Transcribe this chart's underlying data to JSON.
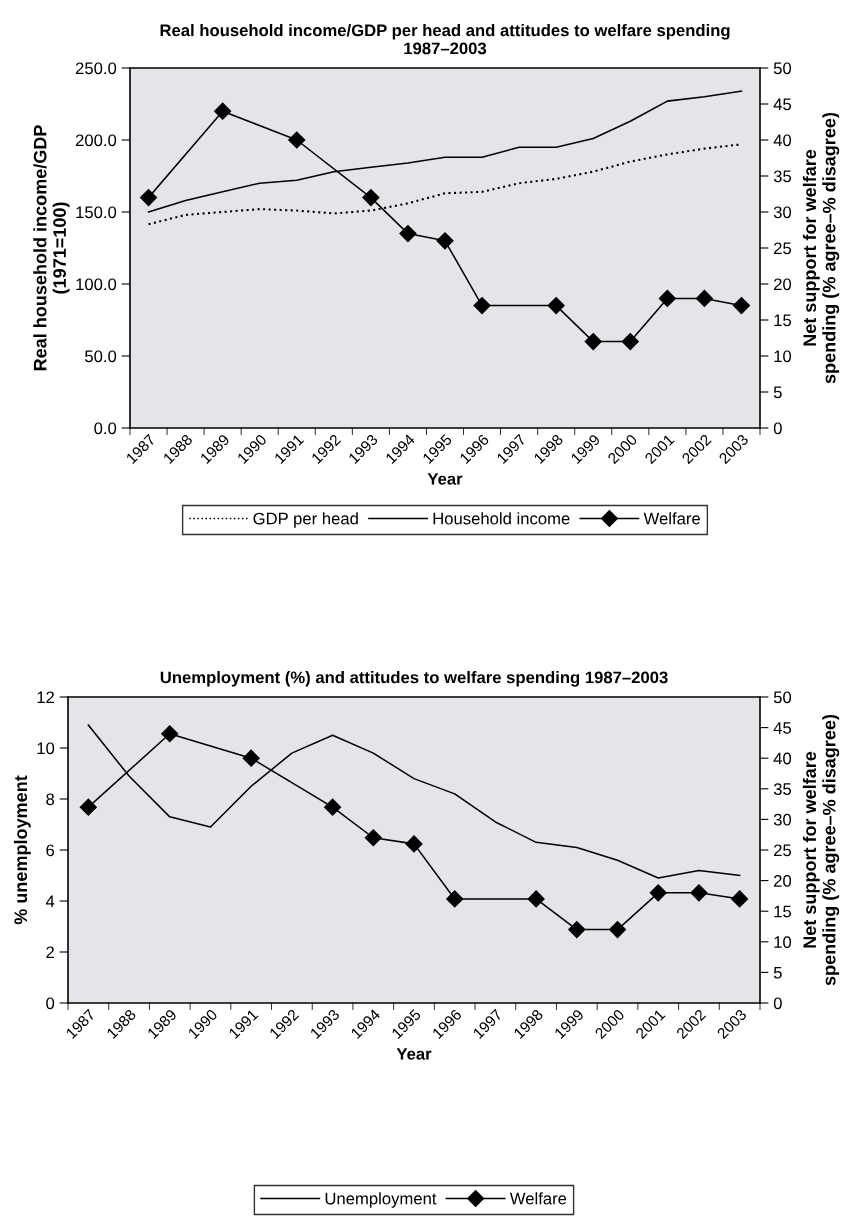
{
  "chart_data": [
    {
      "type": "line",
      "title": "Real household income/GDP per head and attitudes to welfare spending\n1987–2003",
      "xlabel": "Year",
      "ylabel": "Real household income/GDP\n(1971=100)",
      "y2label": "Net support for welfare\nspending (% agree–% disagree)",
      "categories": [
        "1987",
        "1988",
        "1989",
        "1990",
        "1991",
        "1992",
        "1993",
        "1994",
        "1995",
        "1996",
        "1997",
        "1998",
        "1999",
        "2000",
        "2001",
        "2002",
        "2003"
      ],
      "ylim": [
        0,
        250
      ],
      "yticks": [
        {
          "value": 0,
          "label": "0.0"
        },
        {
          "value": 50,
          "label": "50.0"
        },
        {
          "value": 100,
          "label": "100.0"
        },
        {
          "value": 150,
          "label": "150.0"
        },
        {
          "value": 200,
          "label": "200.0"
        },
        {
          "value": 250,
          "label": "250.0"
        }
      ],
      "y2lim": [
        0,
        50
      ],
      "y2ticks": [
        0,
        5,
        10,
        15,
        20,
        25,
        30,
        35,
        40,
        45,
        50
      ],
      "grid": false,
      "legend": "bottom",
      "series": [
        {
          "name": "GDP per head",
          "color": "#000000",
          "line_style": "dotted",
          "marker": "none",
          "values": [
            141.5,
            148,
            150,
            152,
            151,
            149,
            151,
            156,
            163,
            164,
            170,
            173,
            178,
            185,
            190,
            194,
            197
          ]
        },
        {
          "name": "Household income",
          "color": "#000000",
          "line_style": "solid",
          "marker": "none",
          "values": [
            150,
            158,
            164,
            170,
            172,
            178,
            181,
            184,
            188,
            188,
            195,
            195,
            201,
            213,
            227,
            230,
            234
          ]
        },
        {
          "name": "Welfare",
          "color": "#000000",
          "line_style": "solid",
          "marker": "diamond",
          "axis": "y2",
          "values": [
            32,
            null,
            44,
            null,
            40,
            null,
            32,
            27,
            26,
            17,
            null,
            17,
            12,
            12,
            18,
            18,
            17
          ]
        }
      ]
    },
    {
      "type": "line",
      "title": "Unemployment (%) and attitudes to welfare spending 1987–2003",
      "xlabel": "Year",
      "ylabel": "% unemployment",
      "y2label": "Net support for welfare\nspending (% agree–% disagree)",
      "categories": [
        "1987",
        "1988",
        "1989",
        "1990",
        "1991",
        "1992",
        "1993",
        "1994",
        "1995",
        "1996",
        "1997",
        "1998",
        "1999",
        "2000",
        "2001",
        "2002",
        "2003"
      ],
      "ylim": [
        0,
        12
      ],
      "yticks": [
        0,
        2,
        4,
        6,
        8,
        10,
        12
      ],
      "y2lim": [
        0,
        50
      ],
      "y2ticks": [
        0,
        5,
        10,
        15,
        20,
        25,
        30,
        35,
        40,
        45,
        50
      ],
      "grid": false,
      "legend": "bottom",
      "series": [
        {
          "name": "Unemployment",
          "color": "#000000",
          "line_style": "solid",
          "marker": "none",
          "values": [
            10.9,
            8.9,
            7.3,
            6.9,
            8.5,
            9.8,
            10.5,
            9.8,
            8.8,
            8.2,
            7.1,
            6.3,
            6.1,
            5.6,
            4.9,
            5.2,
            5.0
          ]
        },
        {
          "name": "Welfare",
          "color": "#000000",
          "line_style": "solid",
          "marker": "diamond",
          "axis": "y2",
          "values": [
            32,
            null,
            44,
            null,
            40,
            null,
            32,
            27,
            26,
            17,
            null,
            17,
            12,
            12,
            18,
            18,
            17
          ]
        }
      ]
    }
  ]
}
